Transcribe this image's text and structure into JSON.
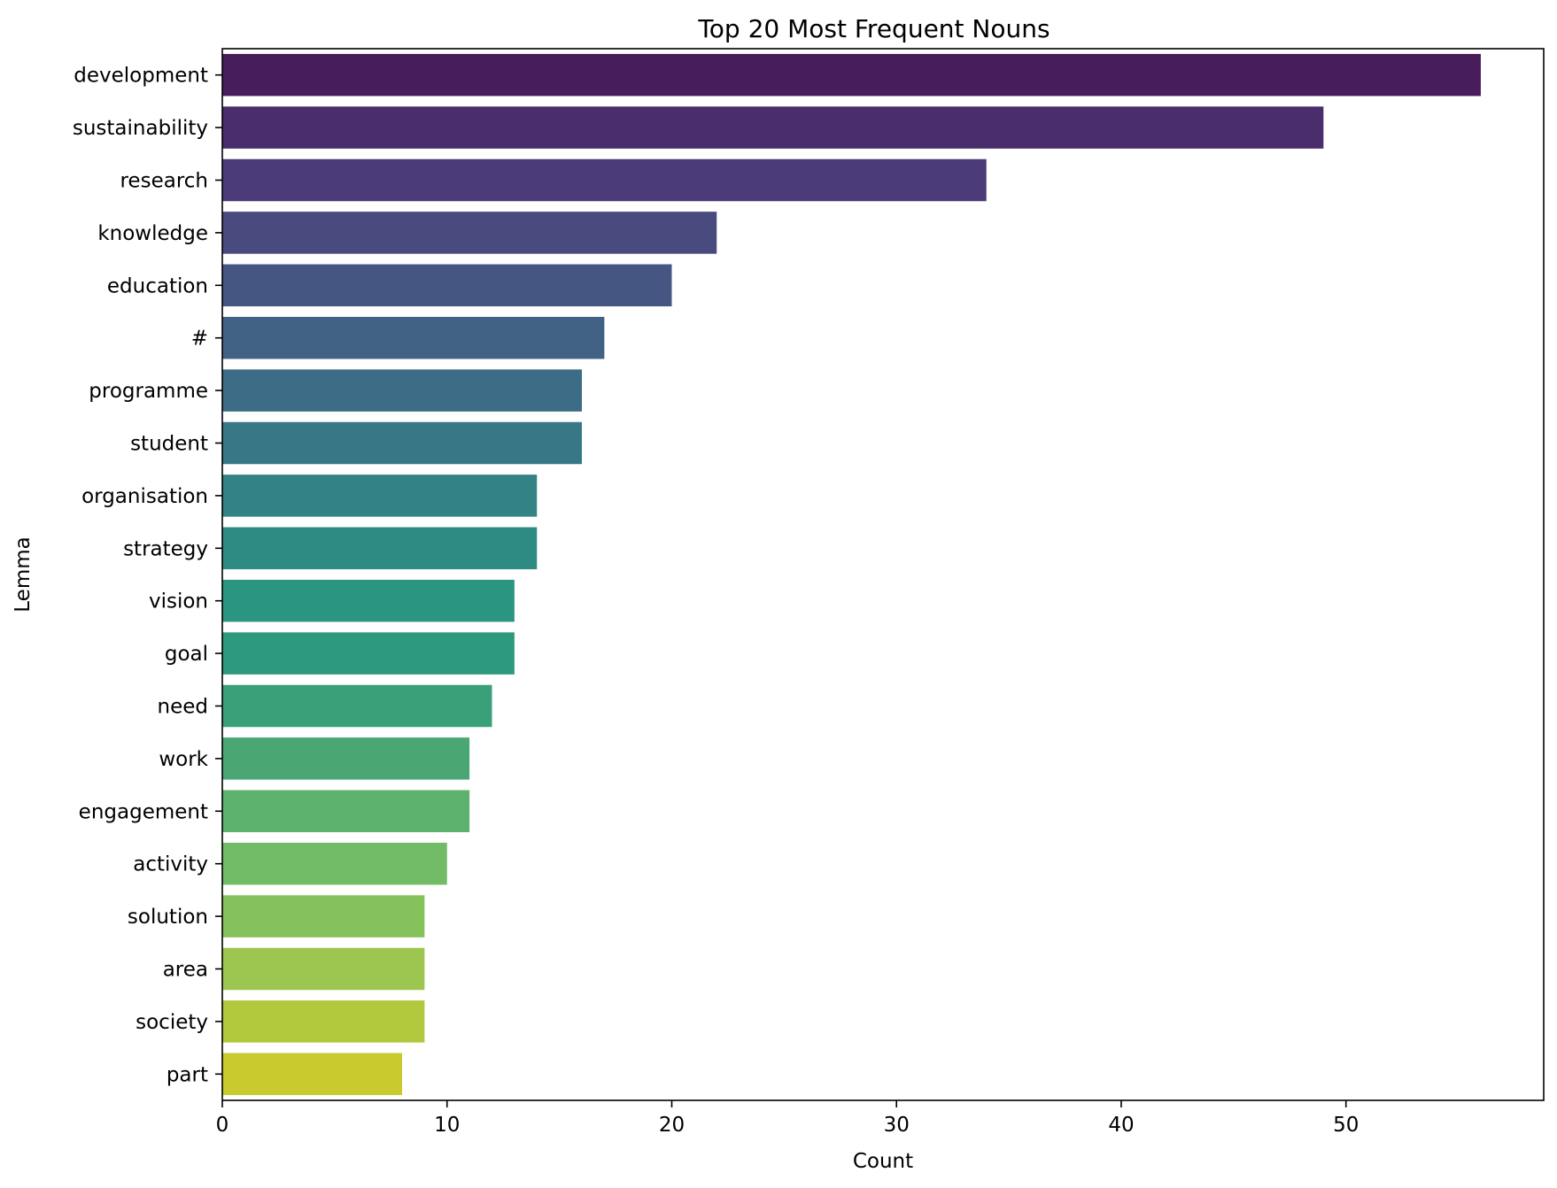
{
  "chart_data": {
    "type": "bar",
    "orientation": "horizontal",
    "title": "Top 20 Most Frequent Nouns",
    "xlabel": "Count",
    "ylabel": "Lemma",
    "xlim": [
      0,
      58.8
    ],
    "xticks": [
      0,
      10,
      20,
      30,
      40,
      50
    ],
    "grid": false,
    "legend": "none",
    "palette": "viridis",
    "categories": [
      "development",
      "sustainability",
      "research",
      "knowledge",
      "education",
      "#",
      "programme",
      "student",
      "organisation",
      "strategy",
      "vision",
      "goal",
      "need",
      "work",
      "engagement",
      "activity",
      "solution",
      "area",
      "society",
      "part"
    ],
    "values": [
      56,
      49,
      34,
      22,
      20,
      17,
      16,
      16,
      14,
      14,
      13,
      13,
      12,
      11,
      11,
      10,
      9,
      9,
      9,
      8
    ],
    "colors": [
      "#471e5b",
      "#4a2d6c",
      "#4b3b78",
      "#494a7e",
      "#455682",
      "#416285",
      "#3c6c86",
      "#387886",
      "#338285",
      "#2e8b84",
      "#2a9681",
      "#2d9a7d",
      "#3aa079",
      "#4aa774",
      "#5db26e",
      "#73bc67",
      "#86c25b",
      "#9cc64f",
      "#b1c83d",
      "#c9ca2e"
    ]
  }
}
